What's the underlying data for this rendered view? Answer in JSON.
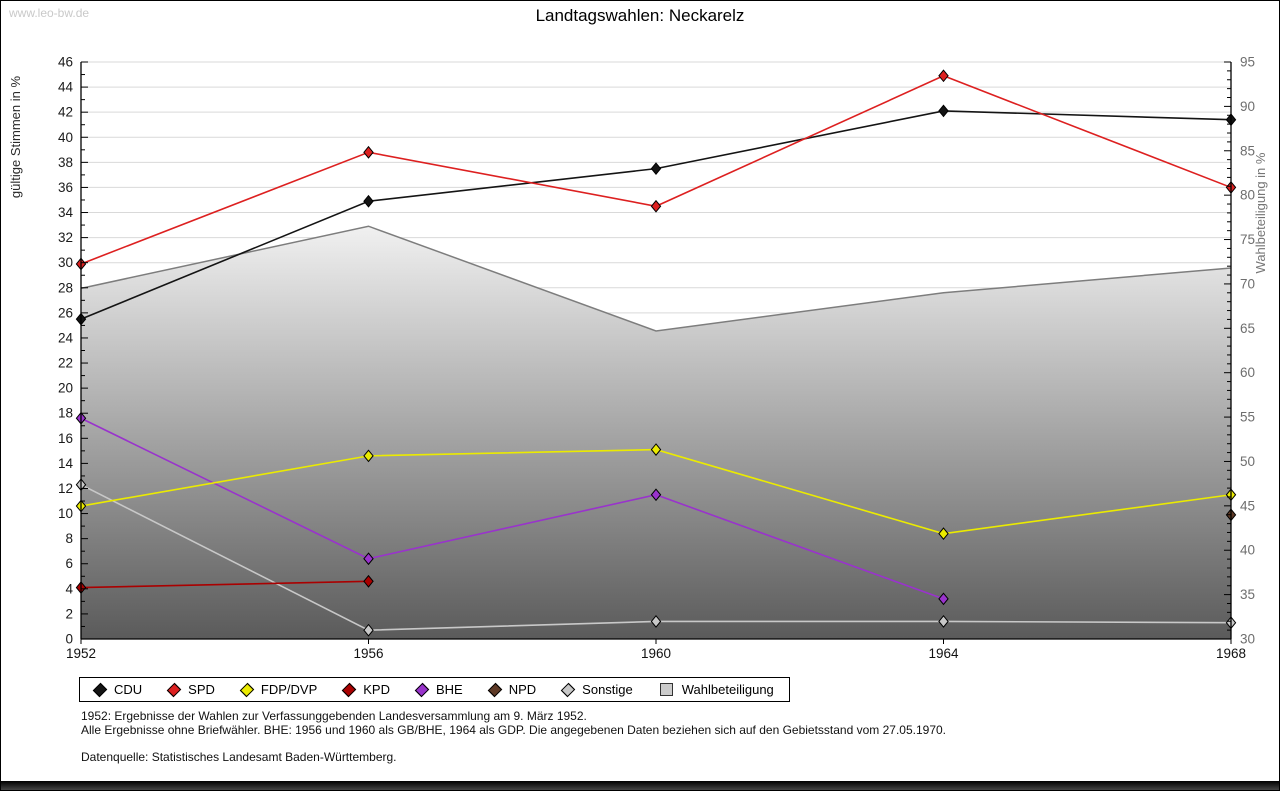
{
  "watermark": "www.leo-bw.de",
  "title": "Landtagswahlen: Neckarelz",
  "chart_data": {
    "type": "line",
    "x": [
      1952,
      1956,
      1960,
      1964,
      1968
    ],
    "left_axis": {
      "label": "gültige Stimmen in %",
      "min": 0,
      "max": 46,
      "label_step": 2,
      "minor_step": 1
    },
    "right_axis": {
      "label": "Wahlbeteiligung in %",
      "min": 30,
      "max": 95,
      "label_step": 5,
      "minor_step": 1
    },
    "grid": "horizontal, every 2 units of left axis",
    "legend_position": "bottom",
    "series": [
      {
        "name": "CDU",
        "color": "#141414",
        "axis": "left",
        "values": [
          25.5,
          34.9,
          37.5,
          42.1,
          41.4
        ]
      },
      {
        "name": "SPD",
        "color": "#dd2020",
        "axis": "left",
        "values": [
          29.9,
          38.8,
          34.5,
          44.9,
          36.0
        ]
      },
      {
        "name": "FDP/DVP",
        "color": "#ebeb00",
        "axis": "left",
        "values": [
          10.6,
          14.6,
          15.1,
          8.4,
          11.5
        ]
      },
      {
        "name": "KPD",
        "color": "#aa0000",
        "axis": "left",
        "values": [
          4.1,
          4.6,
          null,
          null,
          null
        ]
      },
      {
        "name": "BHE",
        "color": "#9933cc",
        "axis": "left",
        "values": [
          17.6,
          6.4,
          11.5,
          3.2,
          null
        ]
      },
      {
        "name": "NPD",
        "color": "#5f3a26",
        "axis": "left",
        "values": [
          null,
          null,
          null,
          null,
          9.9
        ]
      },
      {
        "name": "Sonstige",
        "color": "#c8c8c8",
        "axis": "left",
        "values": [
          12.3,
          0.7,
          1.4,
          1.4,
          1.3
        ]
      }
    ],
    "area_series": {
      "name": "Wahlbeteiligung",
      "axis": "right",
      "values": [
        69.5,
        76.5,
        64.7,
        69.0,
        71.8
      ],
      "edge_color": "#7d7d7d",
      "fill_top": "#f6f6f6",
      "fill_bottom": "#585858",
      "legend_fill": "#cccccc"
    }
  },
  "footnotes": [
    "1952: Ergebnisse der Wahlen zur Verfassunggebenden Landesversammlung am 9. März 1952.",
    "Alle Ergebnisse ohne Briefwähler. BHE: 1956 und 1960 als GB/BHE, 1964 als GDP. Die angegebenen Daten beziehen sich auf den Gebietsstand vom 27.05.1970."
  ],
  "source": "Datenquelle: Statistisches Landesamt Baden-Württemberg."
}
